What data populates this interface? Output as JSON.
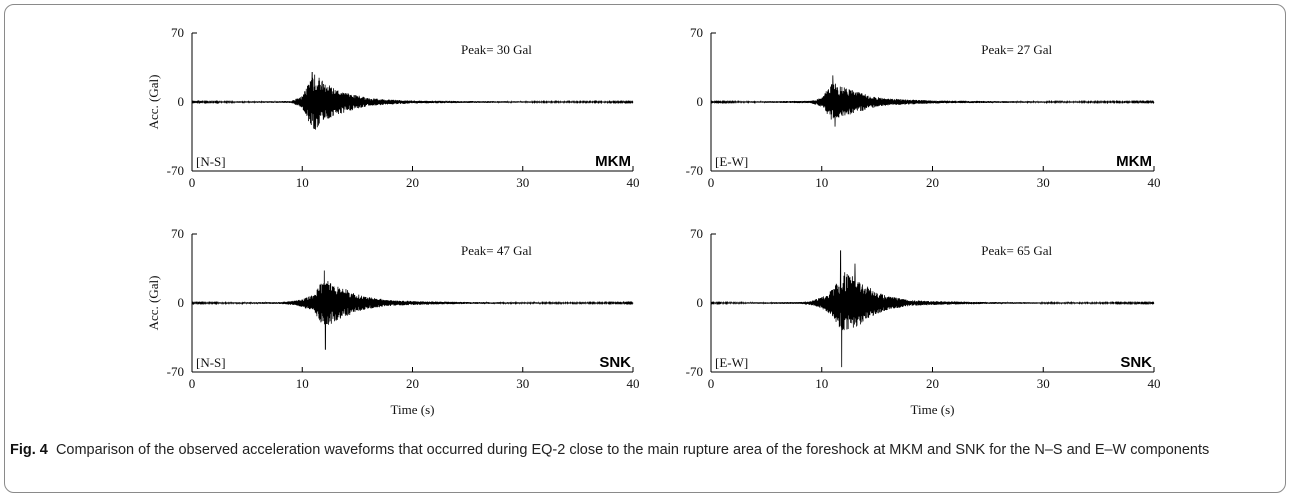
{
  "figure_caption": {
    "label": "Fig. 4",
    "text": "Comparison of the observed acceleration waveforms that occurred during EQ-2 close to the main rupture area of the foreshock at MKM and SNK for the N–S and E–W components"
  },
  "chart_data": [
    {
      "type": "line",
      "component": "[N-S]",
      "station": "MKM",
      "peak_label": "Peak= 30 Gal",
      "xlabel": "",
      "ylabel": "Acc. (Gal)",
      "xlim": [
        0,
        40
      ],
      "ylim": [
        -70,
        70
      ],
      "xticks": [
        "0",
        "10",
        "20",
        "30",
        "40"
      ],
      "yticks": [
        "70",
        "0",
        "-70"
      ],
      "envelope": {
        "x": [
          0,
          9,
          10,
          11,
          12,
          13,
          14,
          15,
          16,
          18,
          20,
          25,
          30,
          40
        ],
        "y": [
          0.4,
          1.0,
          6,
          30,
          20,
          14,
          10,
          7,
          4,
          2.5,
          1.5,
          1,
          0.7,
          0.5
        ]
      },
      "pulses": [
        {
          "x": 10.9,
          "y": 30
        },
        {
          "x": 11.2,
          "y": -28
        }
      ]
    },
    {
      "type": "line",
      "component": "[E-W]",
      "station": "MKM",
      "peak_label": "Peak= 27 Gal",
      "xlabel": "",
      "ylabel": "",
      "xlim": [
        0,
        40
      ],
      "ylim": [
        -70,
        70
      ],
      "xticks": [
        "0",
        "10",
        "20",
        "30",
        "40"
      ],
      "yticks": [
        "70",
        "0",
        "-70"
      ],
      "envelope": {
        "x": [
          0,
          9,
          10,
          11,
          12,
          13,
          14,
          15,
          16,
          18,
          20,
          25,
          30,
          40
        ],
        "y": [
          0.4,
          1.2,
          5,
          20,
          15,
          11,
          8,
          5,
          3.5,
          2.5,
          1.5,
          1,
          0.7,
          0.5
        ]
      },
      "pulses": [
        {
          "x": 11.0,
          "y": 27
        },
        {
          "x": 11.2,
          "y": -25
        }
      ]
    },
    {
      "type": "line",
      "component": "[N-S]",
      "station": "SNK",
      "peak_label": "Peak= 47 Gal",
      "xlabel": "Time (s)",
      "ylabel": "Acc. (Gal)",
      "xlim": [
        0,
        40
      ],
      "ylim": [
        -70,
        70
      ],
      "xticks": [
        "0",
        "10",
        "20",
        "30",
        "40"
      ],
      "yticks": [
        "70",
        "0",
        "-70"
      ],
      "envelope": {
        "x": [
          0,
          8,
          9,
          10,
          11,
          12,
          13,
          14,
          15,
          16,
          18,
          20,
          25,
          30,
          40
        ],
        "y": [
          0.5,
          1.0,
          2,
          4,
          9,
          25,
          20,
          14,
          9,
          6,
          3,
          2,
          1,
          0.7,
          0.5
        ]
      },
      "pulses": [
        {
          "x": 12.0,
          "y": 33
        },
        {
          "x": 12.1,
          "y": -47
        }
      ]
    },
    {
      "type": "line",
      "component": "[E-W]",
      "station": "SNK",
      "peak_label": "Peak= 65 Gal",
      "xlabel": "Time (s)",
      "ylabel": "",
      "xlim": [
        0,
        40
      ],
      "ylim": [
        -70,
        70
      ],
      "xticks": [
        "0",
        "10",
        "20",
        "30",
        "40"
      ],
      "yticks": [
        "70",
        "0",
        "-70"
      ],
      "envelope": {
        "x": [
          0,
          8,
          9,
          10,
          11,
          12,
          13,
          14,
          15,
          16,
          18,
          20,
          25,
          30,
          40
        ],
        "y": [
          0.5,
          1.0,
          2,
          6,
          14,
          32,
          26,
          18,
          11,
          7,
          3,
          2,
          1,
          0.7,
          0.5
        ]
      },
      "pulses": [
        {
          "x": 11.7,
          "y": 53
        },
        {
          "x": 11.8,
          "y": -65
        },
        {
          "x": 13.0,
          "y": 40
        }
      ]
    }
  ]
}
